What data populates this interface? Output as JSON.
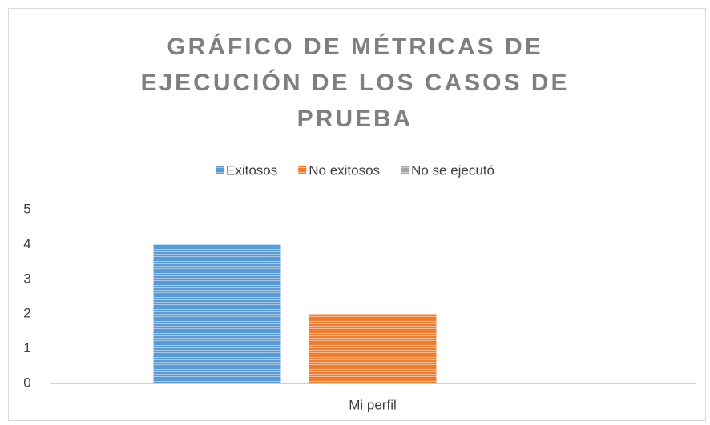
{
  "chart_data": {
    "type": "bar",
    "title": "GRÁFICO DE MÉTRICAS DE EJECUCIÓN DE LOS CASOS DE PRUEBA",
    "categories": [
      "Mi perfil"
    ],
    "series": [
      {
        "name": "Exitosos",
        "color": "#5b9bd5",
        "values": [
          4
        ]
      },
      {
        "name": "No exitosos",
        "color": "#ed7d31",
        "values": [
          2
        ]
      },
      {
        "name": "No se ejecutó",
        "color": "#a5a5a5",
        "values": [
          0
        ]
      }
    ],
    "ylim": [
      0,
      5
    ],
    "yticks": [
      0,
      1,
      2,
      3,
      4,
      5
    ],
    "grid": false,
    "legend": "top"
  }
}
